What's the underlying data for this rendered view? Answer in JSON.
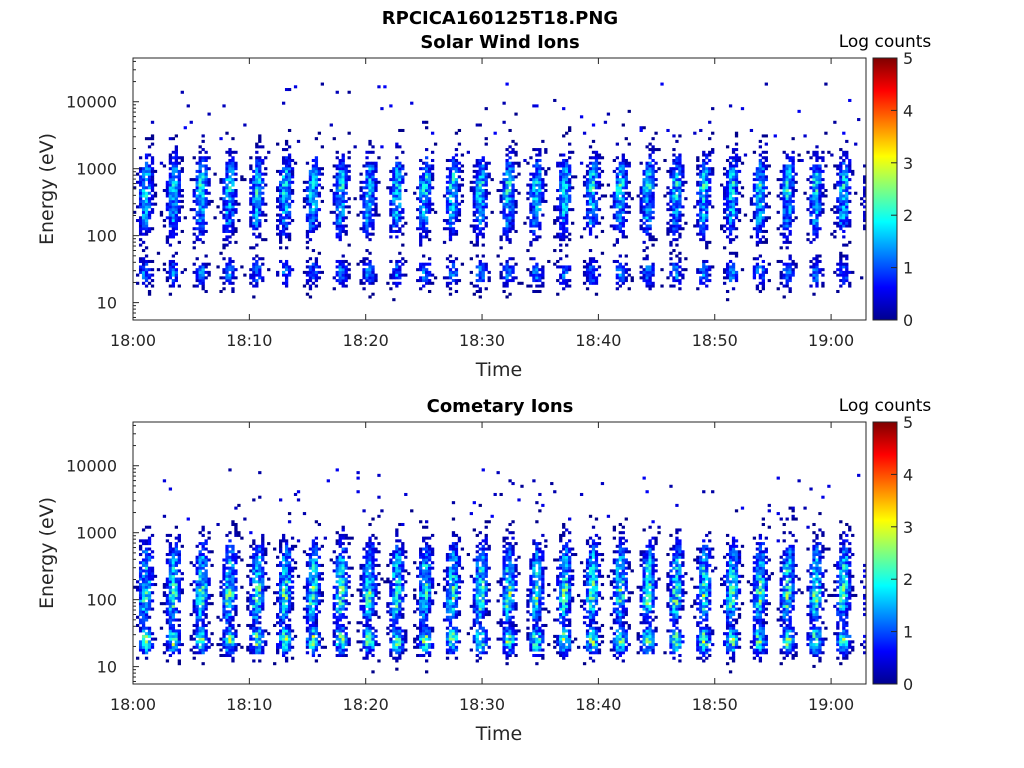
{
  "figure": {
    "title": "RPCICA160125T18.PNG"
  },
  "chart_data": [
    {
      "type": "heatmap",
      "title": "Solar Wind Ions",
      "xlabel": "Time",
      "ylabel": "Energy (eV)",
      "xlim": [
        "18:00",
        "19:03"
      ],
      "xticks": [
        "18:00",
        "18:10",
        "18:20",
        "18:30",
        "18:40",
        "18:50",
        "19:00"
      ],
      "ylim": [
        5.5,
        45000
      ],
      "yscale": "log",
      "yticks": [
        "10",
        "100",
        "1000",
        "10000"
      ],
      "colorbar": {
        "label": "Log counts",
        "range": [
          0,
          5
        ],
        "ticks": [
          "0",
          "1",
          "2",
          "3",
          "4",
          "5"
        ],
        "colormap": "jet"
      },
      "pattern": {
        "sweep_period_min": 2.4,
        "bands_eV": [
          {
            "center": 28,
            "max_log_counts": 1.6
          },
          {
            "center": 250,
            "max_log_counts": 1.9
          },
          {
            "center": 550,
            "max_log_counts": 2.4
          }
        ],
        "sparse_high_energy_eV": [
          1000,
          20000
        ]
      }
    },
    {
      "type": "heatmap",
      "title": "Cometary Ions",
      "xlabel": "Time",
      "ylabel": "Energy (eV)",
      "xlim": [
        "18:00",
        "19:03"
      ],
      "xticks": [
        "18:00",
        "18:10",
        "18:20",
        "18:30",
        "18:40",
        "18:50",
        "19:00"
      ],
      "ylim": [
        5.5,
        45000
      ],
      "yscale": "log",
      "yticks": [
        "10",
        "100",
        "1000",
        "10000"
      ],
      "colorbar": {
        "label": "Log counts",
        "range": [
          0,
          5
        ],
        "ticks": [
          "0",
          "1",
          "2",
          "3",
          "4",
          "5"
        ],
        "colormap": "jet"
      },
      "pattern": {
        "sweep_period_min": 2.4,
        "bands_eV": [
          {
            "center": 25,
            "max_log_counts": 3.0
          },
          {
            "center": 120,
            "max_log_counts": 2.9
          },
          {
            "center": 280,
            "max_log_counts": 2.2
          }
        ],
        "sparse_high_energy_eV": [
          700,
          9000
        ]
      }
    }
  ]
}
